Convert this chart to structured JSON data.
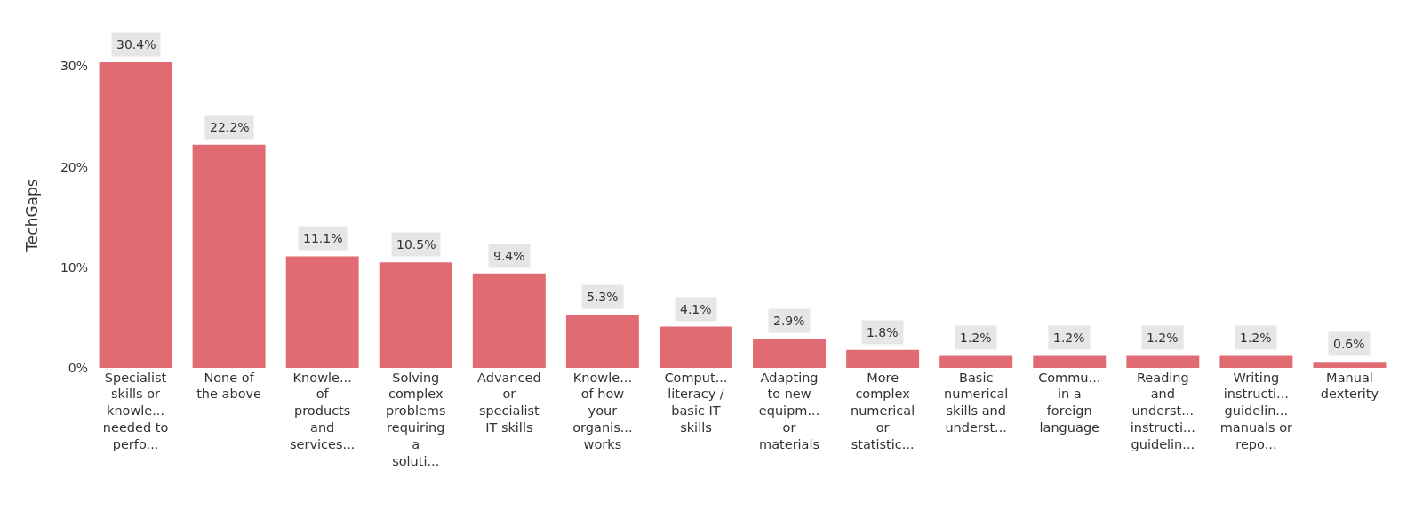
{
  "chart_data": {
    "type": "bar",
    "ylabel": "TechGaps",
    "categories": [
      "Specialist skills or knowle... needed to perfo...",
      "None of the above",
      "Knowle... of products and services...",
      "Solving complex problems requiring a soluti...",
      "Advanced or specialist IT skills",
      "Knowle... of how your organis... works",
      "Comput... literacy / basic IT skills",
      "Adapting to new equipm... or materials",
      "More complex numerical or statistic...",
      "Basic numerical skills and underst...",
      "Commu... in a foreign language",
      "Reading and underst... instructi... guidelin...",
      "Writing instructi... guidelin... manuals or repo...",
      "Manual dexterity"
    ],
    "values": [
      30.4,
      22.2,
      11.1,
      10.5,
      9.4,
      5.3,
      4.1,
      2.9,
      1.8,
      1.2,
      1.2,
      1.2,
      1.2,
      0.6
    ],
    "value_labels": [
      "30.4%",
      "22.2%",
      "11.1%",
      "10.5%",
      "9.4%",
      "5.3%",
      "4.1%",
      "2.9%",
      "1.8%",
      "1.2%",
      "1.2%",
      "1.2%",
      "1.2%",
      "0.6%"
    ],
    "color": "#e06b73",
    "ylim": [
      0,
      30.4
    ],
    "yticks": [
      {
        "value": 0,
        "label": "0%"
      },
      {
        "value": 10,
        "label": "10%"
      },
      {
        "value": 20,
        "label": "20%"
      },
      {
        "value": 30,
        "label": "30%"
      }
    ],
    "grid": false
  }
}
